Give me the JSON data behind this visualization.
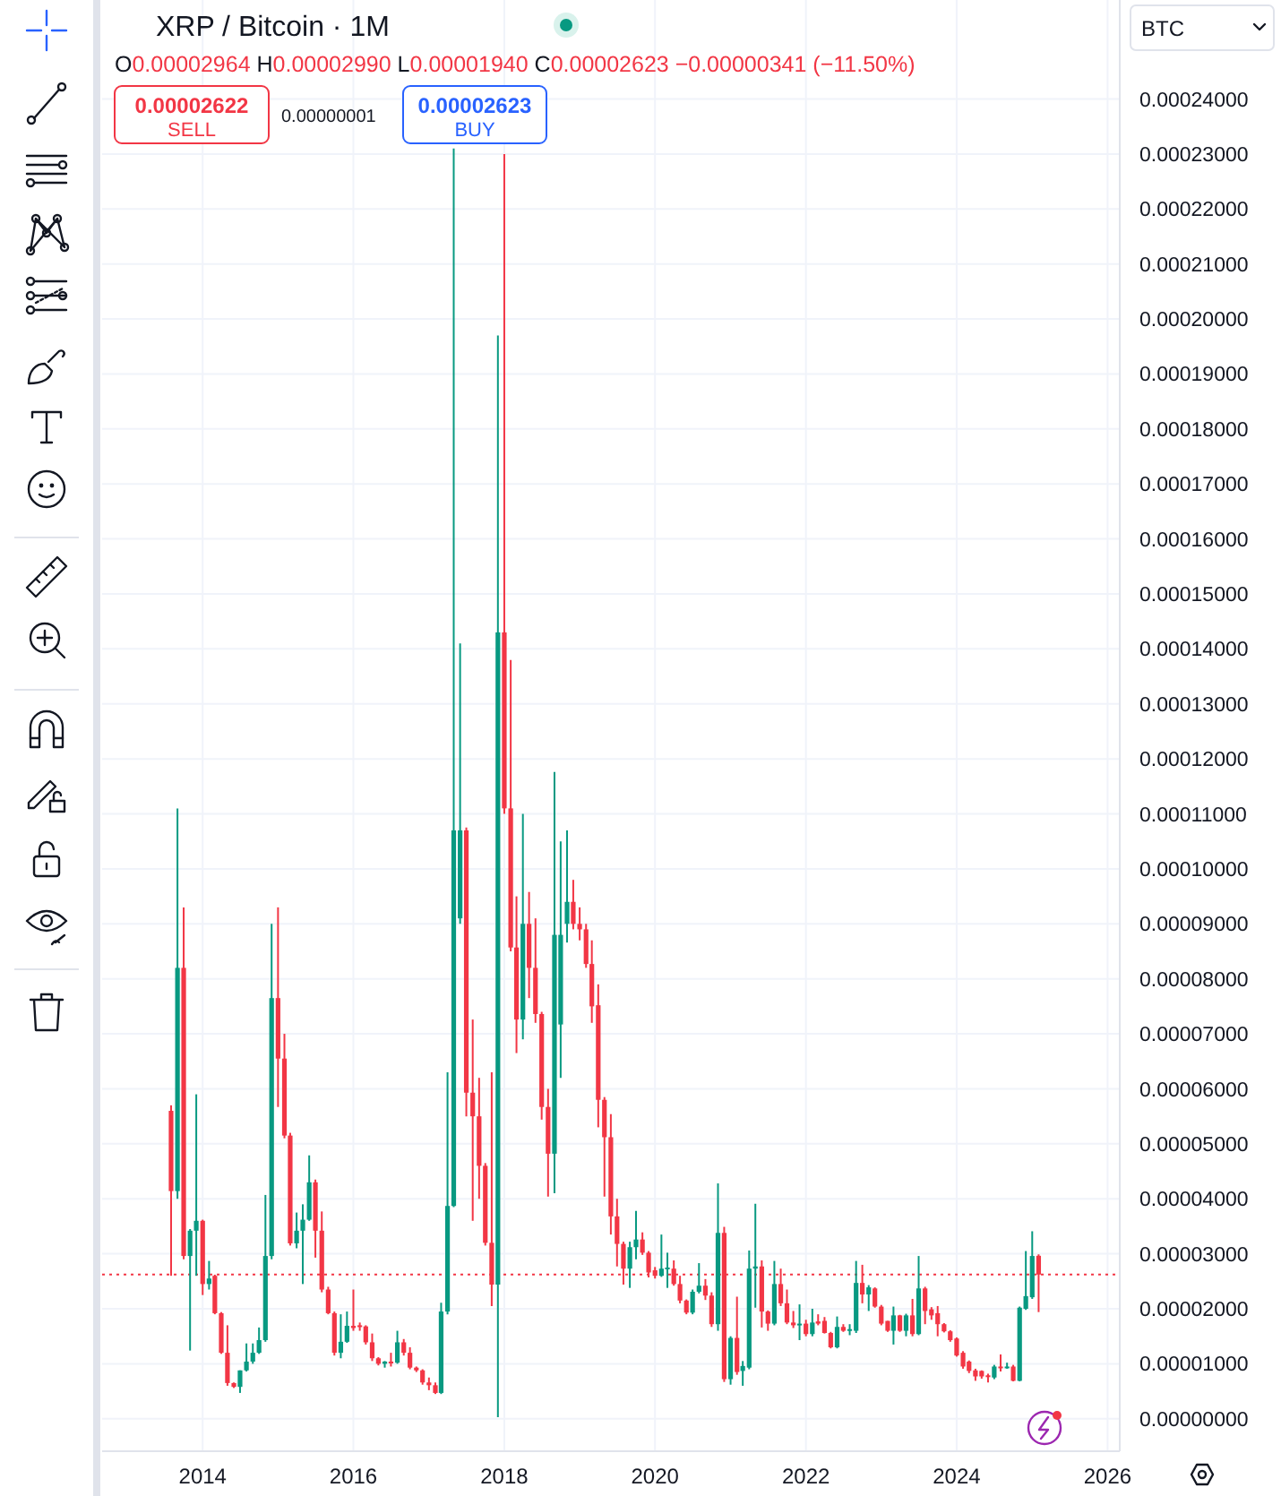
{
  "chart_data": {
    "type": "candlestick",
    "title": "XRP / Bitcoin · 1M",
    "x": [
      "2013-08",
      "2013-09",
      "2013-10",
      "2013-11",
      "2013-12",
      "2014-01",
      "2014-02",
      "2014-03",
      "2014-04",
      "2014-05",
      "2014-06",
      "2014-07",
      "2014-08",
      "2014-09",
      "2014-10",
      "2014-11",
      "2014-12",
      "2015-01",
      "2015-02",
      "2015-03",
      "2015-04",
      "2015-05",
      "2015-06",
      "2015-07",
      "2015-08",
      "2015-09",
      "2015-10",
      "2015-11",
      "2015-12",
      "2016-01",
      "2016-02",
      "2016-03",
      "2016-04",
      "2016-05",
      "2016-06",
      "2016-07",
      "2016-08",
      "2016-09",
      "2016-10",
      "2016-11",
      "2016-12",
      "2017-01",
      "2017-02",
      "2017-03",
      "2017-04",
      "2017-05",
      "2017-06",
      "2017-07",
      "2017-08",
      "2017-09",
      "2017-10",
      "2017-11",
      "2017-12",
      "2018-01",
      "2018-02",
      "2018-03",
      "2018-04",
      "2018-05",
      "2018-06",
      "2018-07",
      "2018-08",
      "2018-09",
      "2018-10",
      "2018-11",
      "2018-12",
      "2019-01",
      "2019-02",
      "2019-03",
      "2019-04",
      "2019-05",
      "2019-06",
      "2019-07",
      "2019-08",
      "2019-09",
      "2019-10",
      "2019-11",
      "2019-12",
      "2020-01",
      "2020-02",
      "2020-03",
      "2020-04",
      "2020-05",
      "2020-06",
      "2020-07",
      "2020-08",
      "2020-09",
      "2020-10",
      "2020-11",
      "2020-12",
      "2021-01",
      "2021-02",
      "2021-03",
      "2021-04",
      "2021-05",
      "2021-06",
      "2021-07",
      "2021-08",
      "2021-09",
      "2021-10",
      "2021-11",
      "2021-12",
      "2022-01",
      "2022-02",
      "2022-03",
      "2022-04",
      "2022-05",
      "2022-06",
      "2022-07",
      "2022-08",
      "2022-09",
      "2022-10",
      "2022-11",
      "2022-12",
      "2023-01",
      "2023-02",
      "2023-03",
      "2023-04",
      "2023-05",
      "2023-06",
      "2023-07",
      "2023-08",
      "2023-09",
      "2023-10",
      "2023-11",
      "2023-12",
      "2024-01",
      "2024-02",
      "2024-03",
      "2024-04",
      "2024-05",
      "2024-06",
      "2024-07",
      "2024-08",
      "2024-09",
      "2024-10",
      "2024-11",
      "2024-12",
      "2025-01",
      "2025-02"
    ],
    "ohlc": [
      [
        5.6e-05,
        5.7e-05,
        2.6e-05,
        4.14e-05
      ],
      [
        4.14e-05,
        0.000111,
        4e-05,
        8.2e-05
      ],
      [
        8.2e-05,
        9.3e-05,
        2.9e-05,
        2.96e-05
      ],
      [
        2.96e-05,
        3.45e-05,
        1.24e-05,
        3.42e-05
      ],
      [
        3.42e-05,
        5.9e-05,
        2.6e-05,
        3.6e-05
      ],
      [
        3.6e-05,
        3.62e-05,
        2.25e-05,
        2.45e-05
      ],
      [
        2.45e-05,
        2.87e-05,
        2.35e-05,
        2.55e-05
      ],
      [
        2.6e-05,
        2.62e-05,
        1.9e-05,
        1.92e-05
      ],
      [
        1.92e-05,
        1.94e-05,
        1.18e-05,
        1.2e-05
      ],
      [
        1.2e-05,
        1.7e-05,
        6e-06,
        6.5e-06
      ],
      [
        6.5e-06,
        6.6e-06,
        5.6e-06,
        5.8e-06
      ],
      [
        5.8e-06,
        8.8e-06,
        4.7e-06,
        8.8e-06
      ],
      [
        8.8e-06,
        1.37e-05,
        8.6e-06,
        1.04e-05
      ],
      [
        1.04e-05,
        1.37e-05,
        1e-05,
        1.2e-05
      ],
      [
        1.2e-05,
        1.66e-05,
        1.18e-05,
        1.43e-05
      ],
      [
        1.43e-05,
        4.07e-05,
        1.4e-05,
        2.96e-05
      ],
      [
        2.96e-05,
        9e-05,
        2.9e-05,
        7.65e-05
      ],
      [
        7.65e-05,
        9.3e-05,
        5.67e-05,
        6.55e-05
      ],
      [
        6.55e-05,
        7e-05,
        5.1e-05,
        5.15e-05
      ],
      [
        5.15e-05,
        5.2e-05,
        3.15e-05,
        3.19e-05
      ],
      [
        3.19e-05,
        3.75e-05,
        3.1e-05,
        3.42e-05
      ],
      [
        3.42e-05,
        3.9e-05,
        2.45e-05,
        3.62e-05
      ],
      [
        3.62e-05,
        4.79e-05,
        3.6e-05,
        4.3e-05
      ],
      [
        4.3e-05,
        4.35e-05,
        2.93e-05,
        3.42e-05
      ],
      [
        3.42e-05,
        3.77e-05,
        2.3e-05,
        2.35e-05
      ],
      [
        2.35e-05,
        2.4e-05,
        1.9e-05,
        1.92e-05
      ],
      [
        1.92e-05,
        1.95e-05,
        1.15e-05,
        1.2e-05
      ],
      [
        1.2e-05,
        1.9e-05,
        1.1e-05,
        1.4e-05
      ],
      [
        1.4e-05,
        1.95e-05,
        1.38e-05,
        1.69e-05
      ],
      [
        1.69e-05,
        2.35e-05,
        1.6e-05,
        1.65e-05
      ],
      [
        1.7e-05,
        1.75e-05,
        1.6e-05,
        1.68e-05
      ],
      [
        1.68e-05,
        1.7e-05,
        1.35e-05,
        1.39e-05
      ],
      [
        1.39e-05,
        1.55e-05,
        1.05e-05,
        1.1e-05
      ],
      [
        1.1e-05,
        1.12e-05,
        9.7e-06,
        1e-05
      ],
      [
        1e-05,
        1.05e-05,
        9.3e-06,
        1.04e-05
      ],
      [
        1.04e-05,
        1.2e-05,
        9.5e-06,
        1.02e-05
      ],
      [
        1.02e-05,
        1.6e-05,
        1e-05,
        1.39e-05
      ],
      [
        1.39e-05,
        1.45e-05,
        1.15e-05,
        1.2e-05
      ],
      [
        1.2e-05,
        1.3e-05,
        9e-06,
        9.3e-06
      ],
      [
        9.3e-06,
        9.5e-06,
        8.5e-06,
        8.8e-06
      ],
      [
        8.8e-06,
        9e-06,
        6.2e-06,
        6.6e-06
      ],
      [
        6.6e-06,
        7.5e-06,
        5.2e-06,
        6.1e-06
      ],
      [
        6.1e-06,
        6.6e-06,
        4.5e-06,
        4.7e-06
      ],
      [
        4.7e-06,
        2.11e-05,
        4.5e-06,
        1.95e-05
      ],
      [
        1.95e-05,
        6.3e-05,
        1.9e-05,
        3.87e-05
      ],
      [
        3.87e-05,
        0.000231,
        3.85e-05,
        0.000107
      ],
      [
        9.1e-05,
        0.000141,
        9e-05,
        0.000107
      ],
      [
        0.000107,
        0.0001075,
        5.5e-05,
        5.93e-05
      ],
      [
        5.93e-05,
        7.26e-05,
        3.6e-05,
        5.5e-05
      ],
      [
        5.5e-05,
        6.2e-05,
        4e-05,
        4.6e-05
      ],
      [
        4.6e-05,
        4.65e-05,
        3.15e-05,
        3.2e-05
      ],
      [
        3.2e-05,
        6.3e-05,
        2.05e-05,
        2.44e-05
      ],
      [
        2.44e-05,
        0.000197,
        3e-07,
        0.000143
      ],
      [
        0.000143,
        0.00023,
        0.00011,
        0.000111
      ],
      [
        0.000111,
        0.000138,
        8.5e-05,
        8.57e-05
      ],
      [
        8.57e-05,
        9.5e-05,
        6.65e-05,
        7.26e-05
      ],
      [
        7.26e-05,
        0.00011,
        6.9e-05,
        9e-05
      ],
      [
        9e-05,
        9.58e-05,
        7.65e-05,
        8.2e-05
      ],
      [
        8.2e-05,
        9.1e-05,
        7.2e-05,
        7.36e-05
      ],
      [
        7.36e-05,
        7.4e-05,
        5.44e-05,
        5.67e-05
      ],
      [
        5.67e-05,
        6e-05,
        4.04e-05,
        4.82e-05
      ],
      [
        4.82e-05,
        0.0001176,
        4.1e-05,
        8.8e-05
      ],
      [
        7.17e-05,
        0.000105,
        6.2e-05,
        8.8e-05
      ],
      [
        9e-05,
        0.000107,
        8.66e-05,
        9.4e-05
      ],
      [
        9.4e-05,
        9.8e-05,
        8.9e-05,
        9e-05
      ],
      [
        9e-05,
        9.3e-05,
        8.7e-05,
        8.9e-05
      ],
      [
        8.9e-05,
        9e-05,
        8.2e-05,
        8.27e-05
      ],
      [
        8.27e-05,
        8.7e-05,
        7.2e-05,
        7.5e-05
      ],
      [
        7.52e-05,
        7.9e-05,
        5.3e-05,
        5.8e-05
      ],
      [
        5.8e-05,
        5.85e-05,
        4.04e-05,
        5.12e-05
      ],
      [
        5.12e-05,
        5.54e-05,
        3.35e-05,
        3.68e-05
      ],
      [
        3.68e-05,
        4e-05,
        2.77e-05,
        3.18e-05
      ],
      [
        3.18e-05,
        3.22e-05,
        2.44e-05,
        2.73e-05
      ],
      [
        2.73e-05,
        3.22e-05,
        2.38e-05,
        3.12e-05
      ],
      [
        3.12e-05,
        3.78e-05,
        2.9e-05,
        3.26e-05
      ],
      [
        3.26e-05,
        3.39e-05,
        2.98e-05,
        3.02e-05
      ],
      [
        3.02e-05,
        3.05e-05,
        2.57e-05,
        2.66e-05
      ],
      [
        2.7e-05,
        2.76e-05,
        2.55e-05,
        2.6e-05
      ],
      [
        2.6e-05,
        3.35e-05,
        2.58e-05,
        2.73e-05
      ],
      [
        2.73e-05,
        3.02e-05,
        2.38e-05,
        2.75e-05
      ],
      [
        2.73e-05,
        2.88e-05,
        2.42e-05,
        2.45e-05
      ],
      [
        2.45e-05,
        2.6e-05,
        2.1e-05,
        2.15e-05
      ],
      [
        2.15e-05,
        2.17e-05,
        1.9e-05,
        1.93e-05
      ],
      [
        1.93e-05,
        2.35e-05,
        1.9e-05,
        2.31e-05
      ],
      [
        2.31e-05,
        2.83e-05,
        2.28e-05,
        2.42e-05
      ],
      [
        2.42e-05,
        2.54e-05,
        2.16e-05,
        2.24e-05
      ],
      [
        2.24e-05,
        2.3e-05,
        1.67e-05,
        1.72e-05
      ],
      [
        1.72e-05,
        4.28e-05,
        1.6e-05,
        3.38e-05
      ],
      [
        3.38e-05,
        3.49e-05,
        6.7e-06,
        7.2e-06
      ],
      [
        7.2e-06,
        1.5e-05,
        6.2e-06,
        1.47e-05
      ],
      [
        1.47e-05,
        2.22e-05,
        8e-06,
        8.5e-06
      ],
      [
        8.7e-06,
        1.05e-05,
        6e-06,
        9.6e-06
      ],
      [
        9.3e-06,
        3.06e-05,
        9e-06,
        2.73e-05
      ],
      [
        2.73e-05,
        3.91e-05,
        2.02e-05,
        2.77e-05
      ],
      [
        2.77e-05,
        2.88e-05,
        1.66e-05,
        1.95e-05
      ],
      [
        1.95e-05,
        1.97e-05,
        1.6e-05,
        1.73e-05
      ],
      [
        1.73e-05,
        2.87e-05,
        1.7e-05,
        2.45e-05
      ],
      [
        2.45e-05,
        2.73e-05,
        2.05e-05,
        2.1e-05
      ],
      [
        2.1e-05,
        2.35e-05,
        1.72e-05,
        1.75e-05
      ],
      [
        1.75e-05,
        1.96e-05,
        1.65e-05,
        1.7e-05
      ],
      [
        1.7e-05,
        2.08e-05,
        1.43e-05,
        1.73e-05
      ],
      [
        1.73e-05,
        1.8e-05,
        1.5e-05,
        1.54e-05
      ],
      [
        1.54e-05,
        2e-05,
        1.5e-05,
        1.75e-05
      ],
      [
        1.77e-05,
        1.9e-05,
        1.7e-05,
        1.73e-05
      ],
      [
        1.78e-05,
        1.85e-05,
        1.55e-05,
        1.56e-05
      ],
      [
        1.56e-05,
        1.58e-05,
        1.28e-05,
        1.3e-05
      ],
      [
        1.3e-05,
        1.86e-05,
        1.28e-05,
        1.67e-05
      ],
      [
        1.67e-05,
        1.72e-05,
        1.58e-05,
        1.6e-05
      ],
      [
        1.6e-05,
        1.72e-05,
        1.52e-05,
        1.63e-05
      ],
      [
        1.6e-05,
        2.87e-05,
        1.56e-05,
        2.47e-05
      ],
      [
        2.47e-05,
        2.8e-05,
        2.1e-05,
        2.26e-05
      ],
      [
        2.26e-05,
        2.43e-05,
        1.96e-05,
        2.39e-05
      ],
      [
        2.37e-05,
        2.39e-05,
        2.02e-05,
        2.04e-05
      ],
      [
        2.04e-05,
        2.07e-05,
        1.7e-05,
        1.73e-05
      ],
      [
        1.78e-05,
        1.78e-05,
        1.58e-05,
        1.6e-05
      ],
      [
        1.6e-05,
        2.04e-05,
        1.35e-05,
        1.88e-05
      ],
      [
        1.88e-05,
        1.89e-05,
        1.58e-05,
        1.6e-05
      ],
      [
        1.6e-05,
        1.91e-05,
        1.5e-05,
        1.88e-05
      ],
      [
        1.88e-05,
        2.18e-05,
        1.5e-05,
        1.54e-05
      ],
      [
        1.54e-05,
        2.96e-05,
        1.52e-05,
        2.37e-05
      ],
      [
        2.37e-05,
        2.4e-05,
        1.72e-05,
        1.96e-05
      ],
      [
        1.99e-05,
        2.03e-05,
        1.8e-05,
        1.88e-05
      ],
      [
        1.92e-05,
        2.05e-05,
        1.5e-05,
        1.72e-05
      ],
      [
        1.72e-05,
        1.74e-05,
        1.57e-05,
        1.59e-05
      ],
      [
        1.59e-05,
        1.61e-05,
        1.4e-05,
        1.43e-05
      ],
      [
        1.46e-05,
        1.48e-05,
        1.13e-05,
        1.15e-05
      ],
      [
        1.2e-05,
        1.23e-05,
        9.1e-06,
        9.5e-06
      ],
      [
        1.04e-05,
        1.06e-05,
        8.3e-06,
        8.7e-06
      ],
      [
        8.8e-06,
        9.1e-06,
        6.9e-06,
        7.7e-06
      ],
      [
        8.7e-06,
        8.8e-06,
        7.3e-06,
        7.7e-06
      ],
      [
        7.9e-06,
        8.2e-06,
        6.6e-06,
        7.6e-06
      ],
      [
        7.5e-06,
        9.8e-06,
        7.2e-06,
        9.5e-06
      ],
      [
        9.5e-06,
        1.17e-05,
        8.6e-06,
        9.3e-06
      ],
      [
        9.3e-06,
        1.02e-05,
        9.1e-06,
        9.5e-06
      ],
      [
        9.5e-06,
        9.8e-06,
        6.8e-06,
        6.9e-06
      ],
      [
        6.9e-06,
        2.04e-05,
        6.8e-06,
        2.02e-05
      ],
      [
        2e-05,
        3.05e-05,
        1.98e-05,
        2.23e-05
      ],
      [
        2.21e-05,
        3.41e-05,
        2.18e-05,
        2.96e-05
      ],
      [
        2.964e-05,
        2.99e-05,
        1.94e-05,
        2.623e-05
      ]
    ],
    "xlim": [
      "2012-09",
      "2026-03"
    ],
    "xticks": [
      {
        "value": "2014",
        "label": "2014"
      },
      {
        "value": "2016",
        "label": "2016"
      },
      {
        "value": "2018",
        "label": "2018"
      },
      {
        "value": "2020",
        "label": "2020"
      },
      {
        "value": "2022",
        "label": "2022"
      },
      {
        "value": "2024",
        "label": "2024"
      },
      {
        "value": "2026",
        "label": "2026"
      }
    ],
    "ylim": [
      -5.9e-06,
      0.000258
    ],
    "yticks": [
      {
        "value": 0,
        "label": "0.00000000"
      },
      {
        "value": 1e-05,
        "label": "0.00001000"
      },
      {
        "value": 2e-05,
        "label": "0.00002000"
      },
      {
        "value": 3e-05,
        "label": "0.00003000"
      },
      {
        "value": 4e-05,
        "label": "0.00004000"
      },
      {
        "value": 5e-05,
        "label": "0.00005000"
      },
      {
        "value": 6e-05,
        "label": "0.00006000"
      },
      {
        "value": 7e-05,
        "label": "0.00007000"
      },
      {
        "value": 8e-05,
        "label": "0.00008000"
      },
      {
        "value": 9e-05,
        "label": "0.00009000"
      },
      {
        "value": 0.0001,
        "label": "0.00010000"
      },
      {
        "value": 0.00011,
        "label": "0.00011000"
      },
      {
        "value": 0.00012,
        "label": "0.00012000"
      },
      {
        "value": 0.00013,
        "label": "0.00013000"
      },
      {
        "value": 0.00014,
        "label": "0.00014000"
      },
      {
        "value": 0.00015,
        "label": "0.00015000"
      },
      {
        "value": 0.00016,
        "label": "0.00016000"
      },
      {
        "value": 0.00017,
        "label": "0.00017000"
      },
      {
        "value": 0.00018,
        "label": "0.00018000"
      },
      {
        "value": 0.00019,
        "label": "0.00019000"
      },
      {
        "value": 0.0002,
        "label": "0.00020000"
      },
      {
        "value": 0.00021,
        "label": "0.00021000"
      },
      {
        "value": 0.00022,
        "label": "0.00022000"
      },
      {
        "value": 0.00023,
        "label": "0.00023000"
      },
      {
        "value": 0.00024,
        "label": "0.00024000"
      }
    ],
    "grid": true,
    "ref_lines": [
      {
        "axis": "y",
        "value": 2.623e-05,
        "color": "#f23645",
        "line_style": "dotted"
      }
    ],
    "annotations": [
      "O0.00002964 H0.00002990 L0.00001940 C0.00002623 −0.00000341 (−11.50%)",
      "0.00002622",
      "SELL",
      "0.00000001",
      "0.00002623",
      "BUY",
      "BTC"
    ]
  }
}
